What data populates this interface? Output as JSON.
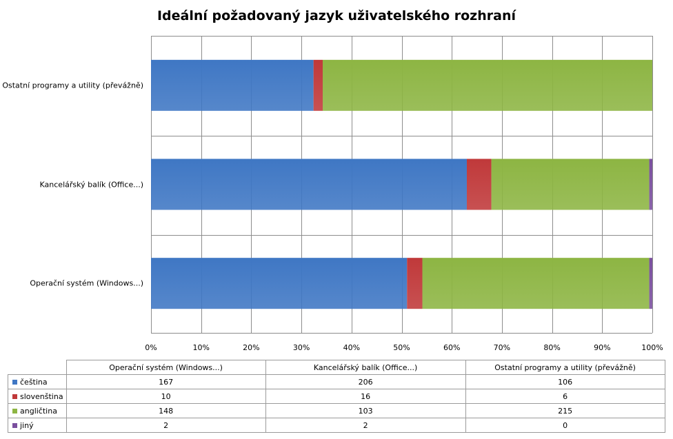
{
  "chart_data": {
    "type": "bar",
    "orientation": "horizontal",
    "stacked": "percent",
    "title": "Ideální požadovaný jazyk uživatelského rozhraní",
    "categories": [
      "Operační systém (Windows...)",
      "Kancelářský balík (Office...)",
      "Ostatní programy a utility (převážně)"
    ],
    "series": [
      {
        "name": "čeština",
        "values": [
          167,
          206,
          106
        ],
        "color": "#3f77c4"
      },
      {
        "name": "slovenština",
        "values": [
          10,
          16,
          6
        ],
        "color": "#c0393a"
      },
      {
        "name": "angličtina",
        "values": [
          148,
          103,
          215
        ],
        "color": "#8db543"
      },
      {
        "name": "jiný",
        "values": [
          2,
          2,
          0
        ],
        "color": "#7a4f9e"
      }
    ],
    "xlim": [
      0,
      100
    ],
    "x_ticks": [
      "0%",
      "10%",
      "20%",
      "30%",
      "40%",
      "50%",
      "60%",
      "70%",
      "80%",
      "90%",
      "100%"
    ],
    "grid": "vertical",
    "legend": "data-table"
  }
}
